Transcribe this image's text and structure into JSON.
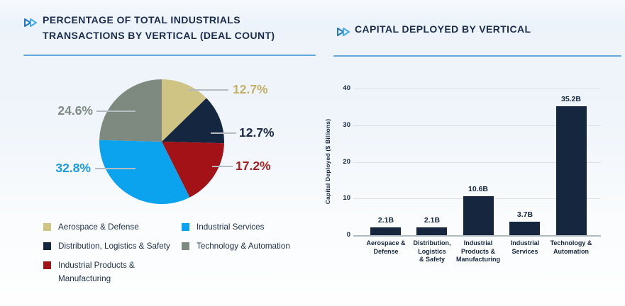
{
  "accent_colors": {
    "title_text": "#1b2c4e",
    "divider_blue": "#64a9de",
    "chevron_dark": "#2277c8",
    "chevron_light": "#44a9ea",
    "leader_line": "#b4bcc2"
  },
  "chart_data": [
    {
      "type": "pie",
      "title": "PERCENTAGE OF TOTAL INDUSTRIALS TRANSACTIONS BY VERTICAL (DEAL COUNT)",
      "title_lines": [
        "PERCENTAGE OF TOTAL INDUSTRIALS",
        "TRANSACTIONS BY VERTICAL (DEAL COUNT)"
      ],
      "start_angle_deg": 0,
      "direction": "clockwise",
      "segments": [
        {
          "label": "Aerospace & Defense",
          "value": 12.7,
          "pct_label": "12.7%",
          "color": "#cfc484",
          "label_color": "#c3b167"
        },
        {
          "label": "Distribution, Logistics & Safety",
          "value": 12.7,
          "pct_label": "12.7%",
          "color": "#152740",
          "label_color": "#1b2a4a"
        },
        {
          "label": "Industrial Products & Manufacturing",
          "value": 17.2,
          "pct_label": "17.2%",
          "color": "#a31217",
          "label_color": "#a32020"
        },
        {
          "label": "Industrial Services",
          "value": 32.8,
          "pct_label": "32.8%",
          "color": "#0ba2ee",
          "label_color": "#189ae6"
        },
        {
          "label": "Technology & Automation",
          "value": 24.6,
          "pct_label": "24.6%",
          "color": "#7e8a80",
          "label_color": "#7f8a82"
        }
      ]
    },
    {
      "type": "bar",
      "title": "CAPITAL DEPLOYED BY VERTICAL",
      "ylabel": "Capital Deployed ($ Billions)",
      "categories": [
        [
          "Aerospace &",
          "Defense"
        ],
        [
          "Distribution,",
          "Logistics",
          "& Safety"
        ],
        [
          "Industrial",
          "Products &",
          "Manufacturing"
        ],
        [
          "Industrial",
          "Services"
        ],
        [
          "Technology &",
          "Automation"
        ]
      ],
      "values": [
        2.1,
        2.1,
        10.6,
        3.7,
        35.2
      ],
      "value_labels": [
        "2.1B",
        "2.1B",
        "10.6B",
        "3.7B",
        "35.2B"
      ],
      "yticks": [
        0,
        10,
        20,
        30,
        40
      ],
      "ylim": [
        0,
        40
      ],
      "grid": true,
      "bar_color": "#16263e"
    }
  ]
}
